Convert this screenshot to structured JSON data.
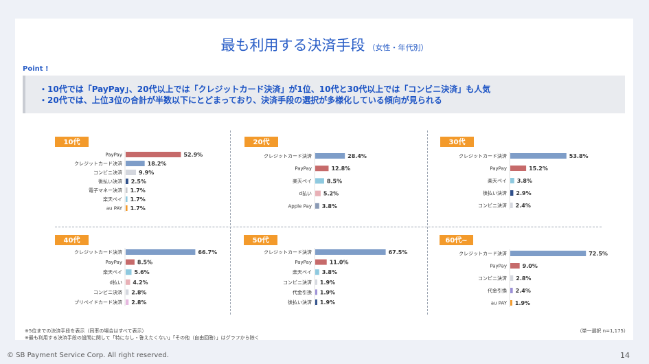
{
  "page": {
    "title": "最も利用する決済手段",
    "subtitle": "（女性・年代別）",
    "point_label": "Point !",
    "points": [
      "・10代では「PayPay」、20代以上では「クレジットカード決済」が1位、10代と30代以上では「コンビニ決済」も人気",
      "・20代では、上位3位の合計が半数以下にとどまっており、決済手段の選択が多様化している傾向が見られる"
    ],
    "footnotes": [
      "※5位までの決済手段を表示（同率の場合はすべて表示）",
      "※最も利用する決済手段の設問に関して「特になし・答えたくない」「その他（自由回答）」はグラフから除く"
    ],
    "base_note": "（単一選択 n=1,175）",
    "copyright": "© SB Payment Service Corp. All right reserved.",
    "page_number": "14"
  },
  "colors": {
    "title_blue": "#2b5fc7",
    "tag_orange": "#f39a2b",
    "PayPay": "#c66a6a",
    "クレジットカード決済": "#7e9dc8",
    "コンビニ決済": "#d4d7de",
    "後払い決済": "#2f4f8a",
    "電子マネー決済": "#c7c8cc",
    "楽天ペイ": "#8ec9df",
    "au PAY": "#f39a2b",
    "d払い": "#e8b0b6",
    "Apple Pay": "#8a9ab5",
    "プリペイドカード決済": "#e6b8e0",
    "代金引換": "#9a8fd6"
  },
  "chart_data": [
    {
      "type": "bar",
      "orientation": "horizontal",
      "title": "10代",
      "categories": [
        "PayPay",
        "クレジットカード決済",
        "コンビニ決済",
        "後払い決済",
        "電子マネー決済",
        "楽天ペイ",
        "au PAY"
      ],
      "values": [
        52.9,
        18.2,
        9.9,
        2.5,
        1.7,
        1.7,
        1.7
      ],
      "labels": [
        "52.9%",
        "18.2%",
        "9.9%",
        "2.5%",
        "1.7%",
        "1.7%",
        "1.7%"
      ]
    },
    {
      "type": "bar",
      "orientation": "horizontal",
      "title": "20代",
      "categories": [
        "クレジットカード決済",
        "PayPay",
        "楽天ペイ",
        "d払い",
        "Apple Pay"
      ],
      "values": [
        28.4,
        12.8,
        8.5,
        5.2,
        3.8
      ],
      "labels": [
        "28.4%",
        "12.8%",
        "8.5%",
        "5.2%",
        "3.8%"
      ]
    },
    {
      "type": "bar",
      "orientation": "horizontal",
      "title": "30代",
      "categories": [
        "クレジットカード決済",
        "PayPay",
        "楽天ペイ",
        "後払い決済",
        "コンビニ決済"
      ],
      "values": [
        53.8,
        15.2,
        3.8,
        2.9,
        2.4
      ],
      "labels": [
        "53.8%",
        "15.2%",
        "3.8%",
        "2.9%",
        "2.4%"
      ]
    },
    {
      "type": "bar",
      "orientation": "horizontal",
      "title": "40代",
      "categories": [
        "クレジットカード決済",
        "PayPay",
        "楽天ペイ",
        "d払い",
        "コンビニ決済",
        "プリペイドカード決済"
      ],
      "values": [
        66.7,
        8.5,
        5.6,
        4.2,
        2.8,
        2.8
      ],
      "labels": [
        "66.7%",
        "8.5%",
        "5.6%",
        "4.2%",
        "2.8%",
        "2.8%"
      ]
    },
    {
      "type": "bar",
      "orientation": "horizontal",
      "title": "50代",
      "categories": [
        "クレジットカード決済",
        "PayPay",
        "楽天ペイ",
        "コンビニ決済",
        "代金引換",
        "後払い決済"
      ],
      "values": [
        67.5,
        11.0,
        3.8,
        1.9,
        1.9,
        1.9
      ],
      "labels": [
        "67.5%",
        "11.0%",
        "3.8%",
        "1.9%",
        "1.9%",
        "1.9%"
      ]
    },
    {
      "type": "bar",
      "orientation": "horizontal",
      "title": "60代~",
      "categories": [
        "クレジットカード決済",
        "PayPay",
        "コンビニ決済",
        "代金引換",
        "au PAY"
      ],
      "values": [
        72.5,
        9.0,
        2.8,
        2.4,
        1.9
      ],
      "labels": [
        "72.5%",
        "9.0%",
        "2.8%",
        "2.4%",
        "1.9%"
      ]
    }
  ]
}
